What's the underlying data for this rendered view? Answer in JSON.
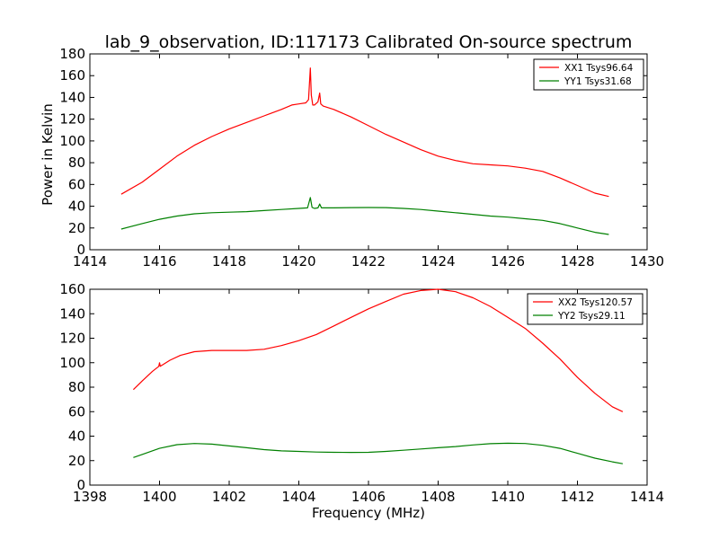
{
  "figure": {
    "title": "lab_9_observation, ID:117173 Calibrated On-source spectrum",
    "xlabel": "Frequency (MHz)",
    "ylabel": "Power in Kelvin"
  },
  "chart_data": [
    {
      "type": "line",
      "title": "lab_9_observation, ID:117173 Calibrated On-source spectrum",
      "xlabel": "",
      "ylabel": "Power in Kelvin",
      "xlim": [
        1414,
        1430
      ],
      "ylim": [
        0,
        180
      ],
      "xticks": [
        "1414",
        "1416",
        "1418",
        "1420",
        "1422",
        "1424",
        "1426",
        "1428",
        "1430"
      ],
      "yticks": [
        "0",
        "20",
        "40",
        "60",
        "80",
        "100",
        "120",
        "140",
        "160",
        "180"
      ],
      "grid": false,
      "legend_position": "top-right",
      "series": [
        {
          "name": "XX1 Tsys96.64",
          "color": "#ff0000",
          "x": [
            1414.9,
            1415.5,
            1416.0,
            1416.5,
            1417.0,
            1417.5,
            1418.0,
            1418.5,
            1419.0,
            1419.5,
            1419.8,
            1420.0,
            1420.2,
            1420.28,
            1420.33,
            1420.36,
            1420.4,
            1420.45,
            1420.55,
            1420.6,
            1420.63,
            1420.7,
            1421.0,
            1421.5,
            1422.0,
            1422.5,
            1423.0,
            1423.5,
            1424.0,
            1424.5,
            1425.0,
            1425.5,
            1426.0,
            1426.5,
            1427.0,
            1427.5,
            1428.0,
            1428.5,
            1428.9
          ],
          "y": [
            51,
            62,
            74,
            86,
            96,
            104,
            111,
            117,
            123,
            129,
            133,
            134,
            135,
            138,
            167,
            142,
            133,
            133,
            136,
            144,
            134,
            132,
            129,
            122,
            114,
            106,
            99,
            92,
            86,
            82,
            79,
            78,
            77,
            75,
            72,
            66,
            59,
            52,
            49
          ]
        },
        {
          "name": "YY1 Tsys31.68",
          "color": "#008000",
          "x": [
            1414.9,
            1415.5,
            1416.0,
            1416.5,
            1417.0,
            1417.5,
            1418.0,
            1418.5,
            1419.0,
            1419.5,
            1420.0,
            1420.25,
            1420.33,
            1420.38,
            1420.45,
            1420.55,
            1420.6,
            1420.65,
            1420.7,
            1421.0,
            1421.5,
            1422.0,
            1422.5,
            1423.0,
            1423.5,
            1424.0,
            1424.5,
            1425.0,
            1425.5,
            1426.0,
            1426.5,
            1427.0,
            1427.5,
            1428.0,
            1428.5,
            1428.9
          ],
          "y": [
            19,
            24,
            28,
            31,
            33,
            34,
            34.5,
            35,
            36,
            37,
            38,
            38.5,
            48,
            39,
            38,
            38.5,
            42,
            38.5,
            38.5,
            38.5,
            38.7,
            38.8,
            38.7,
            38,
            37,
            35.5,
            34,
            32.5,
            31,
            30,
            28.5,
            27,
            24,
            20,
            16,
            14
          ]
        }
      ]
    },
    {
      "type": "line",
      "title": "",
      "xlabel": "Frequency (MHz)",
      "ylabel": "",
      "xlim": [
        1398,
        1414
      ],
      "ylim": [
        0,
        160
      ],
      "xticks": [
        "1398",
        "1400",
        "1402",
        "1404",
        "1406",
        "1408",
        "1410",
        "1412",
        "1414"
      ],
      "yticks": [
        "0",
        "20",
        "40",
        "60",
        "80",
        "100",
        "120",
        "140",
        "160"
      ],
      "grid": false,
      "legend_position": "top-right",
      "series": [
        {
          "name": "XX2 Tsys120.57",
          "color": "#ff0000",
          "x": [
            1399.25,
            1399.5,
            1399.8,
            1399.98,
            1400.0,
            1400.02,
            1400.3,
            1400.6,
            1401.0,
            1401.5,
            1402.0,
            1402.5,
            1403.0,
            1403.5,
            1404.0,
            1404.5,
            1405.0,
            1405.5,
            1406.0,
            1406.5,
            1407.0,
            1407.5,
            1408.0,
            1408.5,
            1409.0,
            1409.5,
            1410.0,
            1410.5,
            1411.0,
            1411.5,
            1412.0,
            1412.5,
            1413.0,
            1413.3
          ],
          "y": [
            78,
            85,
            93,
            97,
            100,
            97,
            102,
            106,
            109,
            110,
            110,
            110,
            111,
            114,
            118,
            123,
            130,
            137,
            144,
            150,
            156,
            159,
            160,
            158,
            153,
            146,
            137,
            128,
            116,
            103,
            88,
            75,
            64,
            60
          ]
        },
        {
          "name": "YY2 Tsys29.11",
          "color": "#008000",
          "x": [
            1399.25,
            1399.5,
            1400.0,
            1400.5,
            1401.0,
            1401.5,
            1402.0,
            1402.5,
            1403.0,
            1403.5,
            1404.0,
            1404.5,
            1405.0,
            1405.5,
            1406.0,
            1406.5,
            1407.0,
            1407.5,
            1408.0,
            1408.5,
            1409.0,
            1409.5,
            1410.0,
            1410.5,
            1411.0,
            1411.5,
            1412.0,
            1412.5,
            1413.0,
            1413.3
          ],
          "y": [
            22.5,
            25,
            30,
            33,
            34,
            33.5,
            32,
            30.5,
            29,
            28,
            27.5,
            27,
            26.8,
            26.7,
            26.8,
            27.5,
            28.5,
            29.5,
            30.5,
            31.5,
            32.8,
            33.8,
            34.2,
            34,
            32.5,
            30,
            26,
            22,
            19,
            17.5
          ]
        }
      ]
    }
  ]
}
